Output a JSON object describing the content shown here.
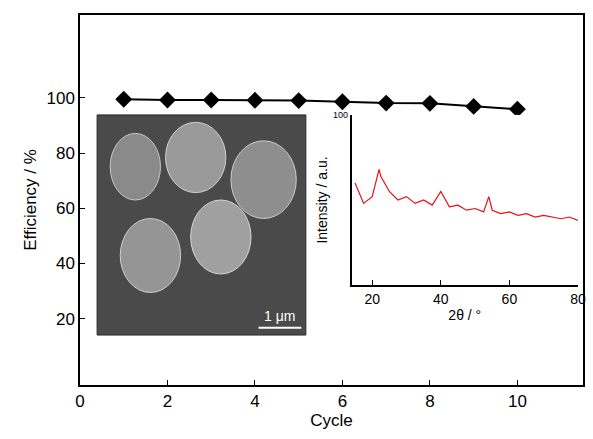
{
  "chart_data": [
    {
      "type": "line",
      "x_label": "Cycle",
      "y_label": "Efficiency / %",
      "x": [
        1,
        2,
        3,
        4,
        5,
        6,
        7,
        8,
        9,
        10
      ],
      "values": [
        99.5,
        99.2,
        99.2,
        99.1,
        99.0,
        98.6,
        98.1,
        98.0,
        96.9,
        95.9
      ],
      "color": "#000000",
      "marker": "diamond",
      "line_style": "solid",
      "xlim": [
        0,
        11.5
      ],
      "xticks": [
        0,
        2,
        4,
        6,
        8,
        10
      ],
      "ylim": [
        -4,
        130
      ],
      "yticks": [
        20,
        40,
        60,
        80,
        100
      ],
      "grid": false
    },
    {
      "type": "line",
      "x_label": "2θ / °",
      "y_label": "Intensity / a.u.",
      "x": [
        15,
        17.5,
        20,
        22,
        22.5,
        25,
        27.5,
        30,
        32.5,
        35,
        37.5,
        40,
        42.5,
        45,
        47.5,
        50,
        52.5,
        54,
        55,
        57.5,
        60,
        62.5,
        65,
        67.5,
        70,
        72.5,
        75,
        77.5,
        80
      ],
      "values": [
        60,
        48,
        52,
        68,
        64,
        55,
        50,
        52,
        48,
        50,
        47,
        55,
        46,
        47,
        44,
        45,
        43,
        52,
        44,
        42,
        43,
        41,
        42,
        40,
        41,
        40,
        39,
        40,
        38
      ],
      "color": "#e8101a",
      "line_style": "solid",
      "xlim": [
        14,
        80
      ],
      "xticks": [
        20,
        40,
        60,
        80
      ],
      "ylim": [
        0,
        100
      ],
      "yticks": [
        100
      ],
      "grid": false
    }
  ],
  "image_inset": {
    "scale_bar": "1 μm"
  }
}
